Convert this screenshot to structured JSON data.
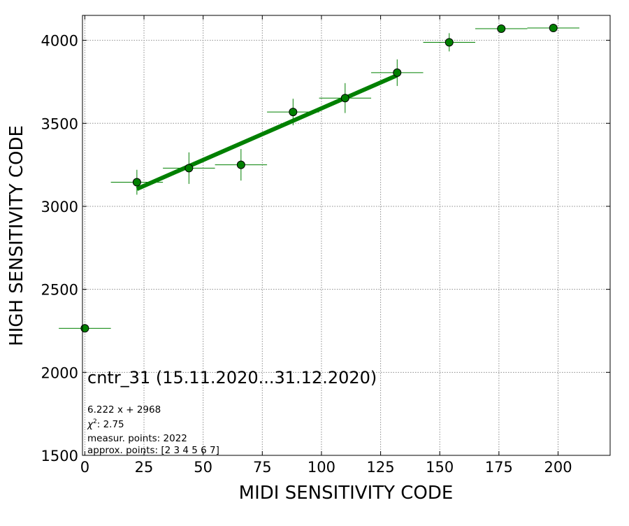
{
  "chart_data": {
    "type": "scatter",
    "title": "",
    "xlabel": "MIDI SENSITIVITY CODE",
    "ylabel": "HIGH SENSITIVITY CODE",
    "xlim": [
      -1,
      222
    ],
    "ylim": [
      1500,
      4150
    ],
    "xticks": [
      0,
      25,
      50,
      75,
      100,
      125,
      150,
      175,
      200
    ],
    "yticks": [
      1500,
      2000,
      2500,
      3000,
      3500,
      4000
    ],
    "grid": true,
    "points": [
      {
        "x": 0,
        "y": 2265,
        "xerr": 11,
        "yerr": 0
      },
      {
        "x": 22,
        "y": 3145,
        "xerr": 11,
        "yerr": 75
      },
      {
        "x": 44,
        "y": 3230,
        "xerr": 11,
        "yerr": 95
      },
      {
        "x": 66,
        "y": 3250,
        "xerr": 11,
        "yerr": 95
      },
      {
        "x": 88,
        "y": 3568,
        "xerr": 11,
        "yerr": 80
      },
      {
        "x": 110,
        "y": 3652,
        "xerr": 11,
        "yerr": 90
      },
      {
        "x": 132,
        "y": 3805,
        "xerr": 11,
        "yerr": 80
      },
      {
        "x": 154,
        "y": 3988,
        "xerr": 11,
        "yerr": 55
      },
      {
        "x": 176,
        "y": 4070,
        "xerr": 11,
        "yerr": 0
      },
      {
        "x": 198,
        "y": 4074,
        "xerr": 11,
        "yerr": 0
      }
    ],
    "fit": {
      "slope": 6.222,
      "intercept": 2968,
      "x_range": [
        22,
        132
      ]
    },
    "colors": {
      "marker": "#008000",
      "fit_line": "#008000",
      "errorbar": "#008000",
      "marker_edge": "#000000",
      "grid": "#8c8c8c"
    },
    "annotations": {
      "label": "cntr_31 (15.11.2020...31.12.2020)",
      "equation": "6.222 x + 2968",
      "chi2_prefix": "χ",
      "chi2_sup": "2",
      "chi2_value": ": 2.75",
      "measur_points": "measur. points: 2022",
      "approx_points": "approx. points: [2 3 4 5 6 7]"
    }
  }
}
